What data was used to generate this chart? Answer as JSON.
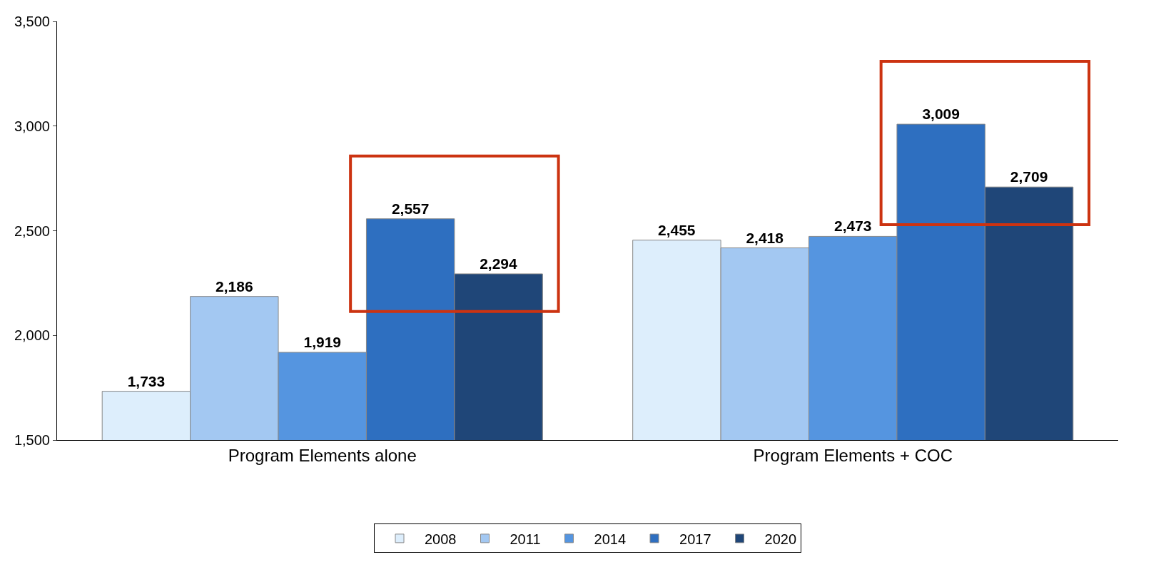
{
  "chart_data": {
    "type": "bar",
    "categories": [
      "Program Elements alone",
      "Program Elements + COC"
    ],
    "series": [
      {
        "name": "2008",
        "color": "#ddeefc",
        "values": [
          1733,
          2455
        ],
        "value_labels": [
          "1,733",
          "2,455"
        ]
      },
      {
        "name": "2011",
        "color": "#a3c8f2",
        "values": [
          2186,
          2418
        ],
        "value_labels": [
          "2,186",
          "2,418"
        ]
      },
      {
        "name": "2014",
        "color": "#5595e0",
        "values": [
          1919,
          2473
        ],
        "value_labels": [
          "1,919",
          "2,473"
        ]
      },
      {
        "name": "2017",
        "color": "#2e6fc0",
        "values": [
          2557,
          3009
        ],
        "value_labels": [
          "2,557",
          "3,009"
        ]
      },
      {
        "name": "2020",
        "color": "#1f4678",
        "values": [
          2294,
          2709
        ],
        "value_labels": [
          "2,294",
          "2,709"
        ]
      }
    ],
    "ylim": [
      1500,
      3500
    ],
    "yticks": [
      {
        "value": 1500,
        "label": "1,500"
      },
      {
        "value": 2000,
        "label": "2,000"
      },
      {
        "value": 2500,
        "label": "2,500"
      },
      {
        "value": 3000,
        "label": "3,000"
      },
      {
        "value": 3500,
        "label": "3,500"
      }
    ],
    "legend": "bottom"
  }
}
